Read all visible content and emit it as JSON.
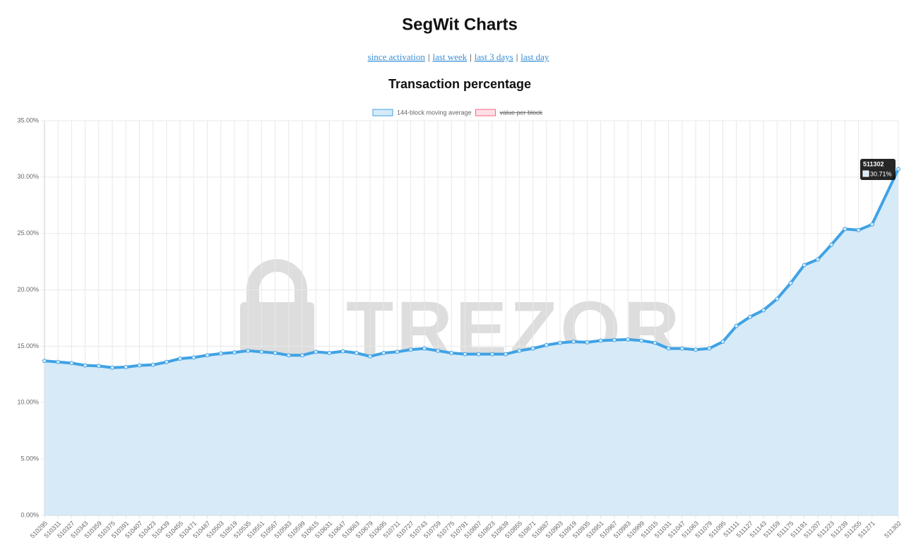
{
  "page": {
    "title": "SegWit Charts",
    "links": [
      "since activation",
      "last week",
      "last 3 days",
      "last day"
    ],
    "separator": "|",
    "watermark": "TREZOR"
  },
  "chart_data": {
    "type": "line",
    "title": "Transaction percentage",
    "x": [
      510295,
      510311,
      510327,
      510343,
      510359,
      510375,
      510391,
      510407,
      510423,
      510439,
      510455,
      510471,
      510487,
      510503,
      510519,
      510535,
      510551,
      510567,
      510583,
      510599,
      510615,
      510631,
      510647,
      510663,
      510679,
      510695,
      510711,
      510727,
      510743,
      510759,
      510775,
      510791,
      510807,
      510823,
      510839,
      510855,
      510871,
      510887,
      510903,
      510919,
      510935,
      510951,
      510967,
      510983,
      510999,
      511015,
      511031,
      511047,
      511063,
      511079,
      511095,
      511111,
      511127,
      511143,
      511159,
      511175,
      511191,
      511207,
      511223,
      511239,
      511255,
      511271,
      511302
    ],
    "series": [
      {
        "name": "144-block moving average",
        "color": "#3fa2e5",
        "fill": "#d6eaf8",
        "values": [
          13.7,
          13.6,
          13.5,
          13.3,
          13.25,
          13.1,
          13.15,
          13.3,
          13.35,
          13.6,
          13.9,
          14.0,
          14.2,
          14.35,
          14.45,
          14.6,
          14.5,
          14.4,
          14.2,
          14.2,
          14.5,
          14.4,
          14.55,
          14.4,
          14.1,
          14.4,
          14.5,
          14.7,
          14.8,
          14.6,
          14.4,
          14.3,
          14.3,
          14.3,
          14.3,
          14.6,
          14.8,
          15.1,
          15.3,
          15.4,
          15.35,
          15.5,
          15.55,
          15.6,
          15.5,
          15.3,
          14.8,
          14.8,
          14.7,
          14.8,
          15.4,
          16.8,
          17.6,
          18.2,
          19.2,
          20.6,
          22.2,
          22.7,
          24.0,
          25.4,
          25.3,
          25.8,
          30.71
        ]
      },
      {
        "name": "value per block",
        "color": "#ff6384",
        "hidden": true
      }
    ],
    "xlim": [
      510295,
      511302
    ],
    "xticks": [
      510295,
      510311,
      510327,
      510343,
      510359,
      510375,
      510391,
      510407,
      510423,
      510439,
      510455,
      510471,
      510487,
      510503,
      510519,
      510535,
      510551,
      510567,
      510583,
      510599,
      510615,
      510631,
      510647,
      510663,
      510679,
      510695,
      510711,
      510727,
      510743,
      510759,
      510775,
      510791,
      510807,
      510823,
      510839,
      510855,
      510871,
      510887,
      510903,
      510919,
      510935,
      510951,
      510967,
      510983,
      510999,
      511015,
      511031,
      511047,
      511063,
      511079,
      511095,
      511111,
      511127,
      511143,
      511159,
      511175,
      511191,
      511207,
      511223,
      511239,
      511255,
      511271,
      511302
    ],
    "ylim": [
      0,
      35
    ],
    "yticks": [
      {
        "value": 0,
        "label": "0.00%"
      },
      {
        "value": 5,
        "label": "5.00%"
      },
      {
        "value": 10,
        "label": "10.00%"
      },
      {
        "value": 15,
        "label": "15.00%"
      },
      {
        "value": 20,
        "label": "20.00%"
      },
      {
        "value": 25,
        "label": "25.00%"
      },
      {
        "value": 30,
        "label": "30.00%"
      },
      {
        "value": 35,
        "label": "35.00%"
      }
    ],
    "grid": true,
    "legend": "top",
    "tooltip": {
      "title": "511302",
      "label": "30.71%"
    }
  }
}
